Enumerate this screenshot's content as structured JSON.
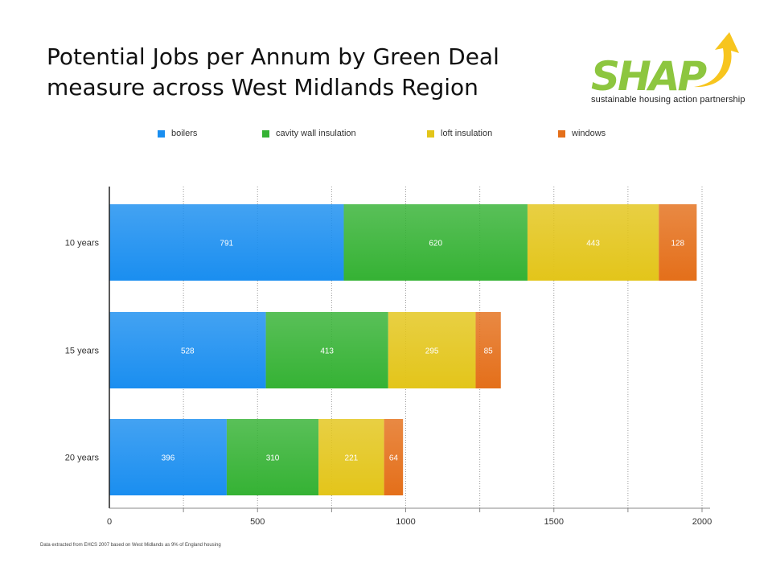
{
  "title": {
    "line1": "Potential Jobs per Annum by Green Deal",
    "line2": "measure across West Midlands Region"
  },
  "logo": {
    "name": "SHAP",
    "tagline": "sustainable housing action partnership",
    "colors": {
      "text": "#8dc63f",
      "arrow": "#f7c51e"
    }
  },
  "footnote": "Data extracted from EHCS 2007 based on West Midlands as 9% of England housing",
  "chart_data": {
    "type": "bar",
    "orientation": "horizontal",
    "stacked": true,
    "categories": [
      "10 years",
      "15 years",
      "20 years"
    ],
    "series": [
      {
        "name": "boilers",
        "values": [
          791,
          528,
          396
        ],
        "color": "#1a8ef0"
      },
      {
        "name": "cavity wall insulation",
        "values": [
          620,
          413,
          310
        ],
        "color": "#35b234"
      },
      {
        "name": "loft insulation",
        "values": [
          443,
          295,
          221
        ],
        "color": "#e3c51a"
      },
      {
        "name": "windows",
        "values": [
          128,
          85,
          64
        ],
        "color": "#e46f1a"
      }
    ],
    "data_labels": true,
    "xlim": [
      0,
      2000
    ],
    "xticks": [
      0,
      500,
      1000,
      1500,
      2000
    ],
    "grid": "vertical dotted",
    "legend": "top"
  }
}
